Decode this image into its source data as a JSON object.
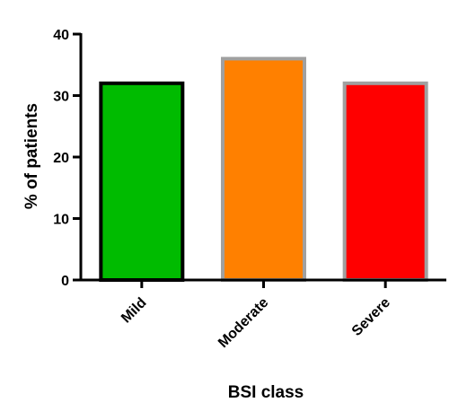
{
  "chart_data": {
    "type": "bar",
    "categories": [
      "Mild",
      "Moderate",
      "Severe"
    ],
    "values": [
      32,
      36,
      32
    ],
    "title": "",
    "xlabel": "BSI class",
    "ylabel": "% of patients",
    "ylim": [
      0,
      40
    ],
    "yticks": [
      0,
      10,
      20,
      30,
      40
    ],
    "ytick_labels": [
      "0",
      "10",
      "20",
      "30",
      "40"
    ],
    "grid": false,
    "legend": "none",
    "bar_fill_colors": [
      "#00bb00",
      "#ff8000",
      "#ff0000"
    ],
    "bar_edge_colors": [
      "#000000",
      "#a0a0a0",
      "#a0a0a0"
    ],
    "axis_color": "#000000"
  }
}
